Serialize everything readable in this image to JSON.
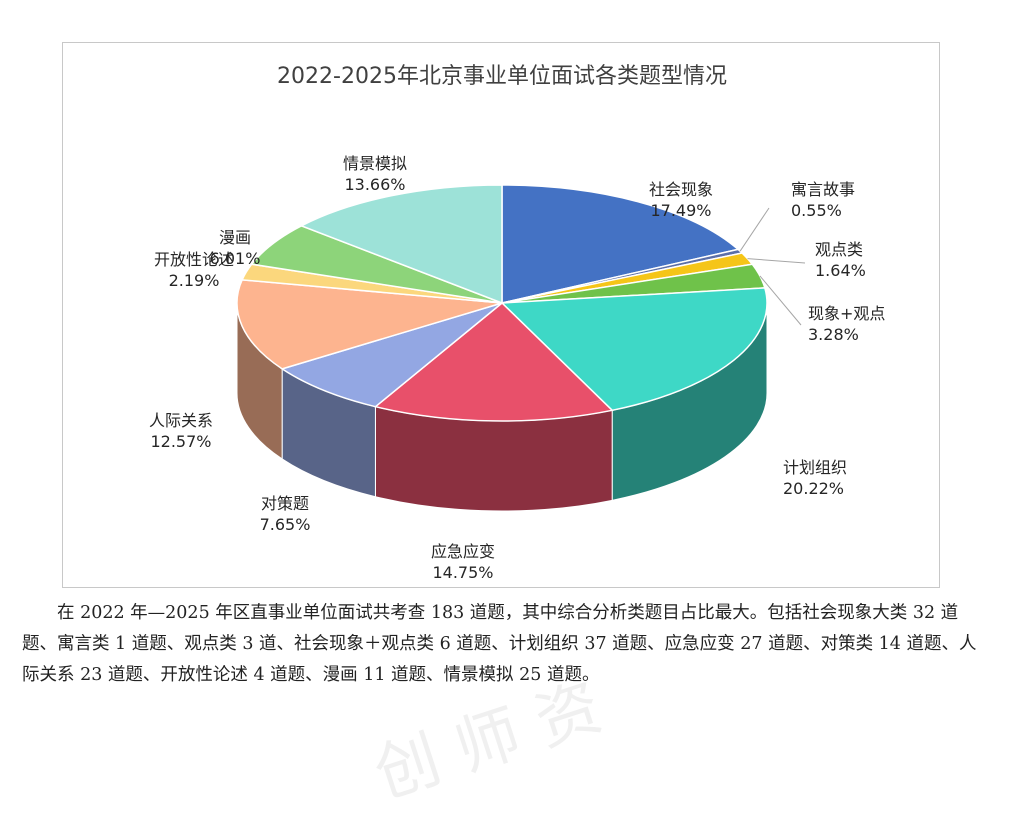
{
  "chart_data": {
    "type": "pie",
    "title": "2022-2025年北京事业单位面试各类题型情况",
    "slices": [
      {
        "label": "社会现象",
        "pct": "17.49%",
        "value": 17.49,
        "color": "#4472C4"
      },
      {
        "label": "寓言故事",
        "pct": "0.55%",
        "value": 0.55,
        "color": "#5B6FA8"
      },
      {
        "label": "观点类",
        "pct": "1.64%",
        "value": 1.64,
        "color": "#F5C518"
      },
      {
        "label": "现象+观点",
        "pct": "3.28%",
        "value": 3.28,
        "color": "#6FC24A"
      },
      {
        "label": "计划组织",
        "pct": "20.22%",
        "value": 20.22,
        "color": "#3ED8C6"
      },
      {
        "label": "应急应变",
        "pct": "14.75%",
        "value": 14.75,
        "color": "#E8506A"
      },
      {
        "label": "对策题",
        "pct": "7.65%",
        "value": 7.65,
        "color": "#93A7E3"
      },
      {
        "label": "人际关系",
        "pct": "12.57%",
        "value": 12.57,
        "color": "#FDB48F"
      },
      {
        "label": "开放性论述",
        "pct": "2.19%",
        "value": 2.19,
        "color": "#FBD77D"
      },
      {
        "label": "漫画",
        "pct": "6.01%",
        "value": 6.01,
        "color": "#8DD47A"
      },
      {
        "label": "情景模拟",
        "pct": "13.66%",
        "value": 13.66,
        "color": "#9DE2D8"
      }
    ]
  },
  "caption": "在 2022 年—2025 年区直事业单位面试共考查 183 道题，其中综合分析类题目占比最大。包括社会现象大类 32 道题、寓言类 1 道题、观点类 3 道、社会现象＋观点类 6 道题、计划组织 37 道题、应急应变 27 道题、对策类 14 道题、人际关系 23 道题、开放性论述 4 道题、漫画 11 道题、情景模拟 25 道题。"
}
